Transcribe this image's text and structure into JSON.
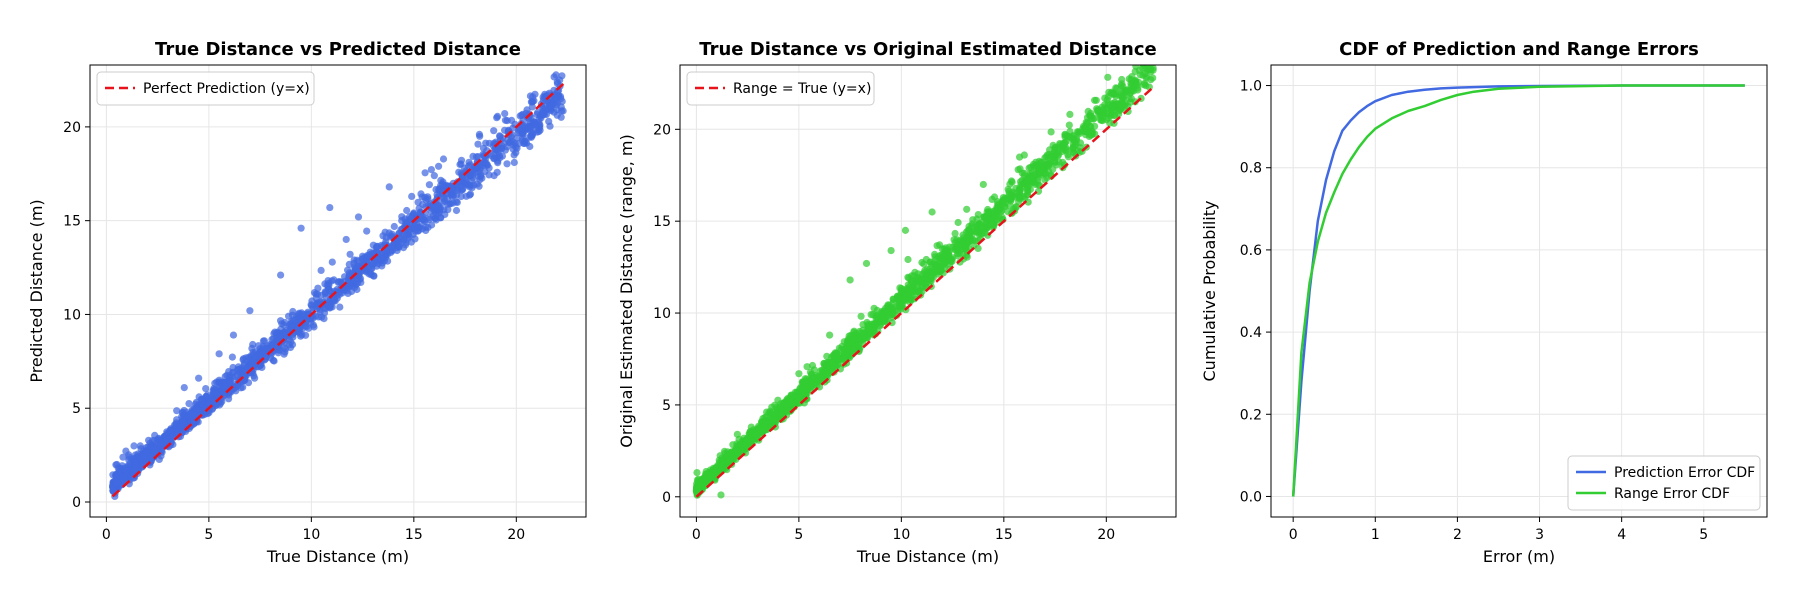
{
  "chart_data": [
    {
      "type": "scatter",
      "title": "True Distance vs Predicted Distance",
      "xlabel": "True Distance (m)",
      "ylabel": "Predicted Distance (m)",
      "xlim": [
        -0.8,
        23.4
      ],
      "ylim": [
        -0.8,
        23.3
      ],
      "xticks": [
        0,
        5,
        10,
        15,
        20
      ],
      "yticks": [
        0,
        5,
        10,
        15,
        20
      ],
      "grid": true,
      "legend_position": "upper-left",
      "series": [
        {
          "kind": "scatter",
          "color": "#4169e1",
          "band": {
            "x_range": [
              0.3,
              22.3
            ],
            "offset": 0.55,
            "slope": 0.95,
            "spread": [
              0.4,
              1.0
            ]
          },
          "outliers": [
            [
              8.5,
              12.1
            ],
            [
              9.5,
              14.6
            ],
            [
              10.9,
              15.7
            ],
            [
              12.3,
              15.2
            ],
            [
              13.8,
              16.8
            ],
            [
              7.0,
              10.2
            ],
            [
              6.2,
              8.9
            ],
            [
              18.2,
              19.6
            ],
            [
              3.8,
              6.1
            ],
            [
              4.5,
              6.6
            ],
            [
              5.5,
              7.9
            ],
            [
              11.7,
              14.0
            ],
            [
              16.0,
              17.4
            ],
            [
              20.8,
              21.6
            ],
            [
              22.0,
              22.4
            ]
          ]
        },
        {
          "kind": "reference",
          "name": "Perfect Prediction (y=x)",
          "color": "#e8121b",
          "dash": "dashed",
          "x": [
            0.3,
            22.3
          ],
          "y": [
            0.3,
            22.3
          ]
        }
      ]
    },
    {
      "type": "scatter",
      "title": "True Distance vs Original Estimated Distance",
      "xlabel": "True Distance (m)",
      "ylabel": "Original Estimated Distance (range, m)",
      "xlim": [
        -0.8,
        23.4
      ],
      "ylim": [
        -1.1,
        23.5
      ],
      "xticks": [
        0,
        5,
        10,
        15,
        20
      ],
      "yticks": [
        0,
        5,
        10,
        15,
        20
      ],
      "grid": true,
      "legend_position": "upper-left",
      "series": [
        {
          "kind": "scatter",
          "color": "#32cd32",
          "band": {
            "x_range": [
              0.0,
              22.3
            ],
            "offset": 0.4,
            "slope": 1.03,
            "spread": [
              0.3,
              0.9
            ]
          },
          "outliers": [
            [
              5.0,
              6.7
            ],
            [
              6.5,
              8.8
            ],
            [
              7.5,
              11.8
            ],
            [
              8.3,
              12.7
            ],
            [
              9.5,
              13.4
            ],
            [
              10.2,
              14.5
            ],
            [
              11.5,
              15.5
            ],
            [
              14.0,
              17.0
            ],
            [
              16.0,
              18.6
            ],
            [
              17.5,
              18.9
            ],
            [
              1.2,
              0.1
            ],
            [
              2.0,
              3.4
            ],
            [
              21.5,
              22.4
            ],
            [
              22.1,
              22.3
            ]
          ]
        },
        {
          "kind": "reference",
          "name": "Range = True (y=x)",
          "color": "#e8121b",
          "dash": "dashed",
          "x": [
            0.0,
            22.3
          ],
          "y": [
            0.0,
            22.3
          ]
        }
      ]
    },
    {
      "type": "line",
      "title": "CDF of Prediction and Range Errors",
      "xlabel": "Error (m)",
      "ylabel": "Cumulative Probability",
      "xlim": [
        -0.27,
        5.77
      ],
      "ylim": [
        -0.05,
        1.05
      ],
      "xticks": [
        0,
        1,
        2,
        3,
        4,
        5
      ],
      "yticks": [
        0.0,
        0.2,
        0.4,
        0.6,
        0.8,
        1.0
      ],
      "grid": true,
      "legend_position": "lower-right",
      "series": [
        {
          "name": "Prediction Error CDF",
          "color": "#4169e1",
          "x": [
            0,
            0.1,
            0.2,
            0.3,
            0.4,
            0.5,
            0.6,
            0.7,
            0.8,
            0.9,
            1.0,
            1.2,
            1.4,
            1.6,
            1.8,
            2.0,
            2.5,
            3.0,
            4.0,
            5.5
          ],
          "y": [
            0,
            0.28,
            0.5,
            0.67,
            0.77,
            0.84,
            0.89,
            0.915,
            0.935,
            0.95,
            0.962,
            0.977,
            0.985,
            0.99,
            0.993,
            0.995,
            0.998,
            0.999,
            1.0,
            1.0
          ]
        },
        {
          "name": "Range Error CDF",
          "color": "#32cd32",
          "x": [
            0,
            0.1,
            0.2,
            0.3,
            0.4,
            0.5,
            0.6,
            0.7,
            0.8,
            0.9,
            1.0,
            1.2,
            1.4,
            1.6,
            1.8,
            2.0,
            2.2,
            2.5,
            3.0,
            4.0,
            5.5
          ],
          "y": [
            0,
            0.35,
            0.52,
            0.62,
            0.69,
            0.74,
            0.785,
            0.82,
            0.85,
            0.875,
            0.895,
            0.92,
            0.938,
            0.95,
            0.965,
            0.977,
            0.985,
            0.992,
            0.997,
            1.0,
            1.0
          ]
        }
      ]
    }
  ]
}
